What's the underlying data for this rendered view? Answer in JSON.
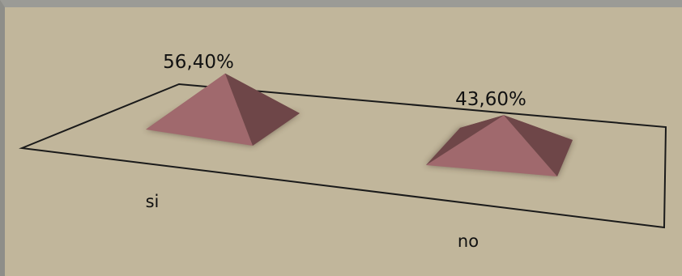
{
  "chart_data": {
    "type": "bar",
    "style": "3d-pyramid",
    "categories": [
      "si",
      "no"
    ],
    "values": [
      56.4,
      43.6
    ],
    "value_labels": [
      "56,40%",
      "43,60%"
    ],
    "unit": "%",
    "title": "",
    "xlabel": "",
    "ylabel": "",
    "legend": "none",
    "grid": false,
    "colors": {
      "background": "#c1b69b",
      "pyramid_light": "#a0696d",
      "pyramid_mid": "#8c5a5e",
      "pyramid_dark": "#6e4648",
      "floor_line": "#1a1a1a"
    }
  }
}
